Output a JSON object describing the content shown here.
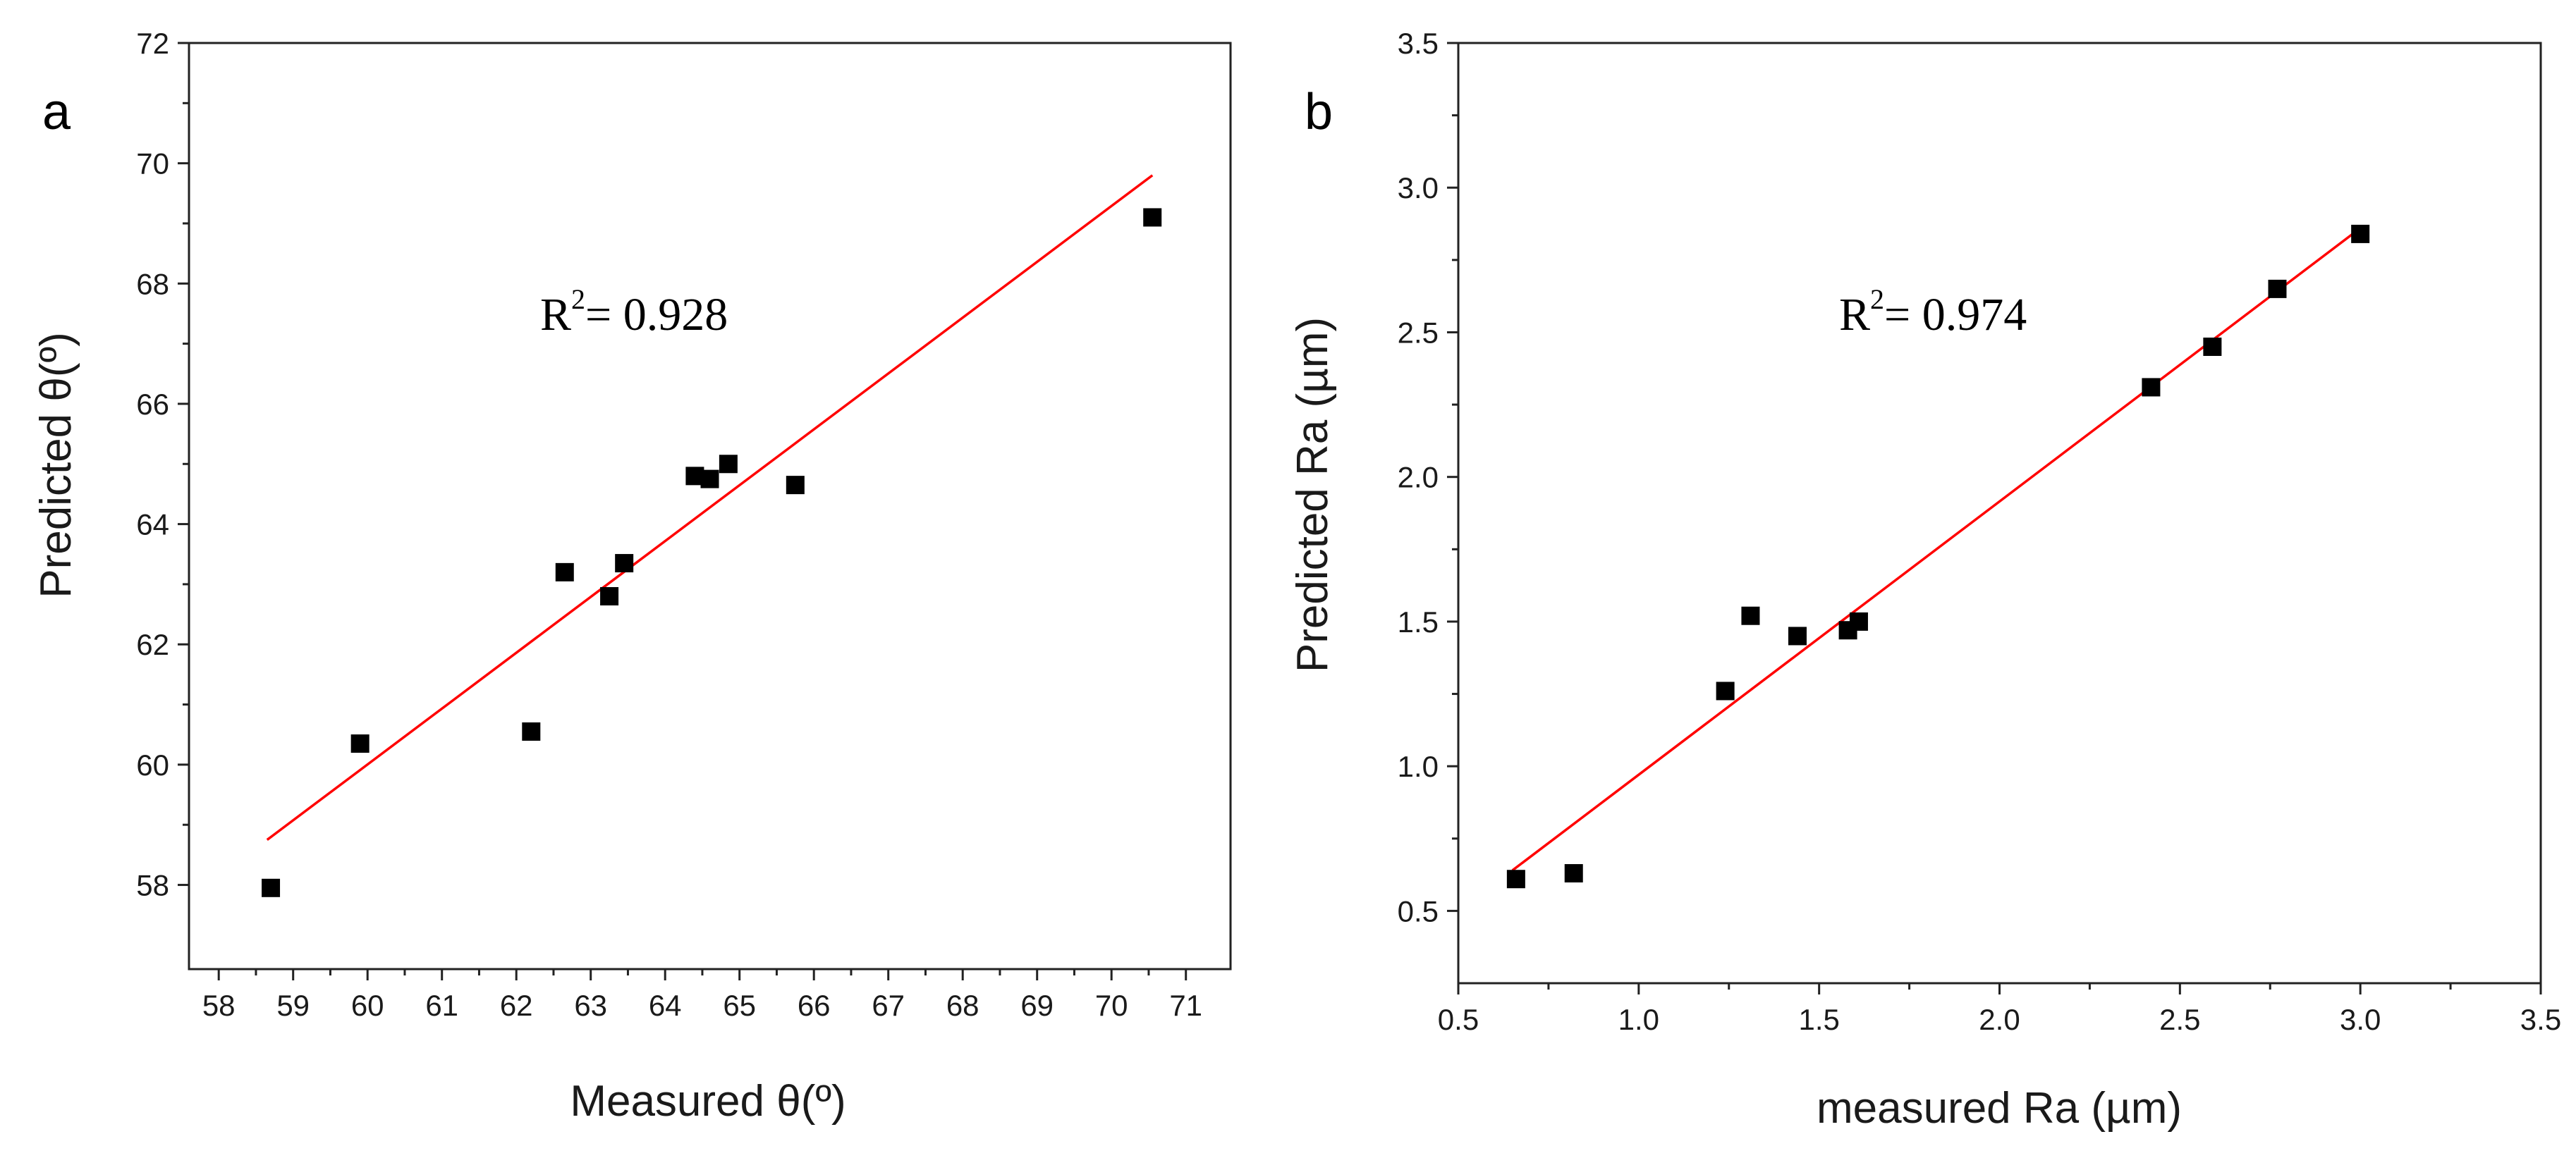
{
  "colors": {
    "fit_line": "#ff0000",
    "marker": "#000000",
    "axis": "#222222"
  },
  "chart_data": [
    {
      "type": "scatter",
      "panel_label": "a",
      "xlabel": "Measured θ(º)",
      "ylabel": "Predicted θ(º)",
      "xlim": [
        57.6,
        71.6
      ],
      "ylim": [
        56.6,
        72
      ],
      "xticks": [
        58,
        59,
        60,
        61,
        62,
        63,
        64,
        65,
        66,
        67,
        68,
        69,
        70,
        71
      ],
      "yticks": [
        58,
        60,
        62,
        64,
        66,
        68,
        70,
        72
      ],
      "annotation": {
        "text_prefix": "R",
        "superscript": "2",
        "text_suffix": "= 0.928"
      },
      "points": {
        "x": [
          58.7,
          59.9,
          62.2,
          62.65,
          63.25,
          63.45,
          64.4,
          64.6,
          64.85,
          65.75,
          70.55
        ],
        "y": [
          57.95,
          60.35,
          60.55,
          63.2,
          62.8,
          63.35,
          64.8,
          64.75,
          65.0,
          64.65,
          69.1
        ]
      },
      "fit_line": {
        "x": [
          58.65,
          70.55
        ],
        "y": [
          58.75,
          69.8
        ]
      }
    },
    {
      "type": "scatter",
      "panel_label": "b",
      "xlabel": "measured Ra (µm)",
      "ylabel": "Predicted Ra (µm)",
      "xlim": [
        0.5,
        3.5
      ],
      "ylim": [
        0.25,
        3.5
      ],
      "xticks": [
        0.5,
        1.0,
        1.5,
        2.0,
        2.5,
        3.0,
        3.5
      ],
      "yticks": [
        0.5,
        1.0,
        1.5,
        2.0,
        2.5,
        3.0,
        3.5
      ],
      "annotation": {
        "text_prefix": "R",
        "superscript": "2",
        "text_suffix": "= 0.974"
      },
      "points": {
        "x": [
          0.66,
          0.82,
          1.24,
          1.31,
          1.44,
          1.58,
          1.61,
          2.42,
          2.59,
          2.77,
          3.0
        ],
        "y": [
          0.61,
          0.63,
          1.26,
          1.52,
          1.45,
          1.47,
          1.5,
          2.31,
          2.45,
          2.65,
          2.84
        ]
      },
      "fit_line": {
        "x": [
          0.65,
          3.0
        ],
        "y": [
          0.64,
          2.86
        ]
      }
    }
  ]
}
